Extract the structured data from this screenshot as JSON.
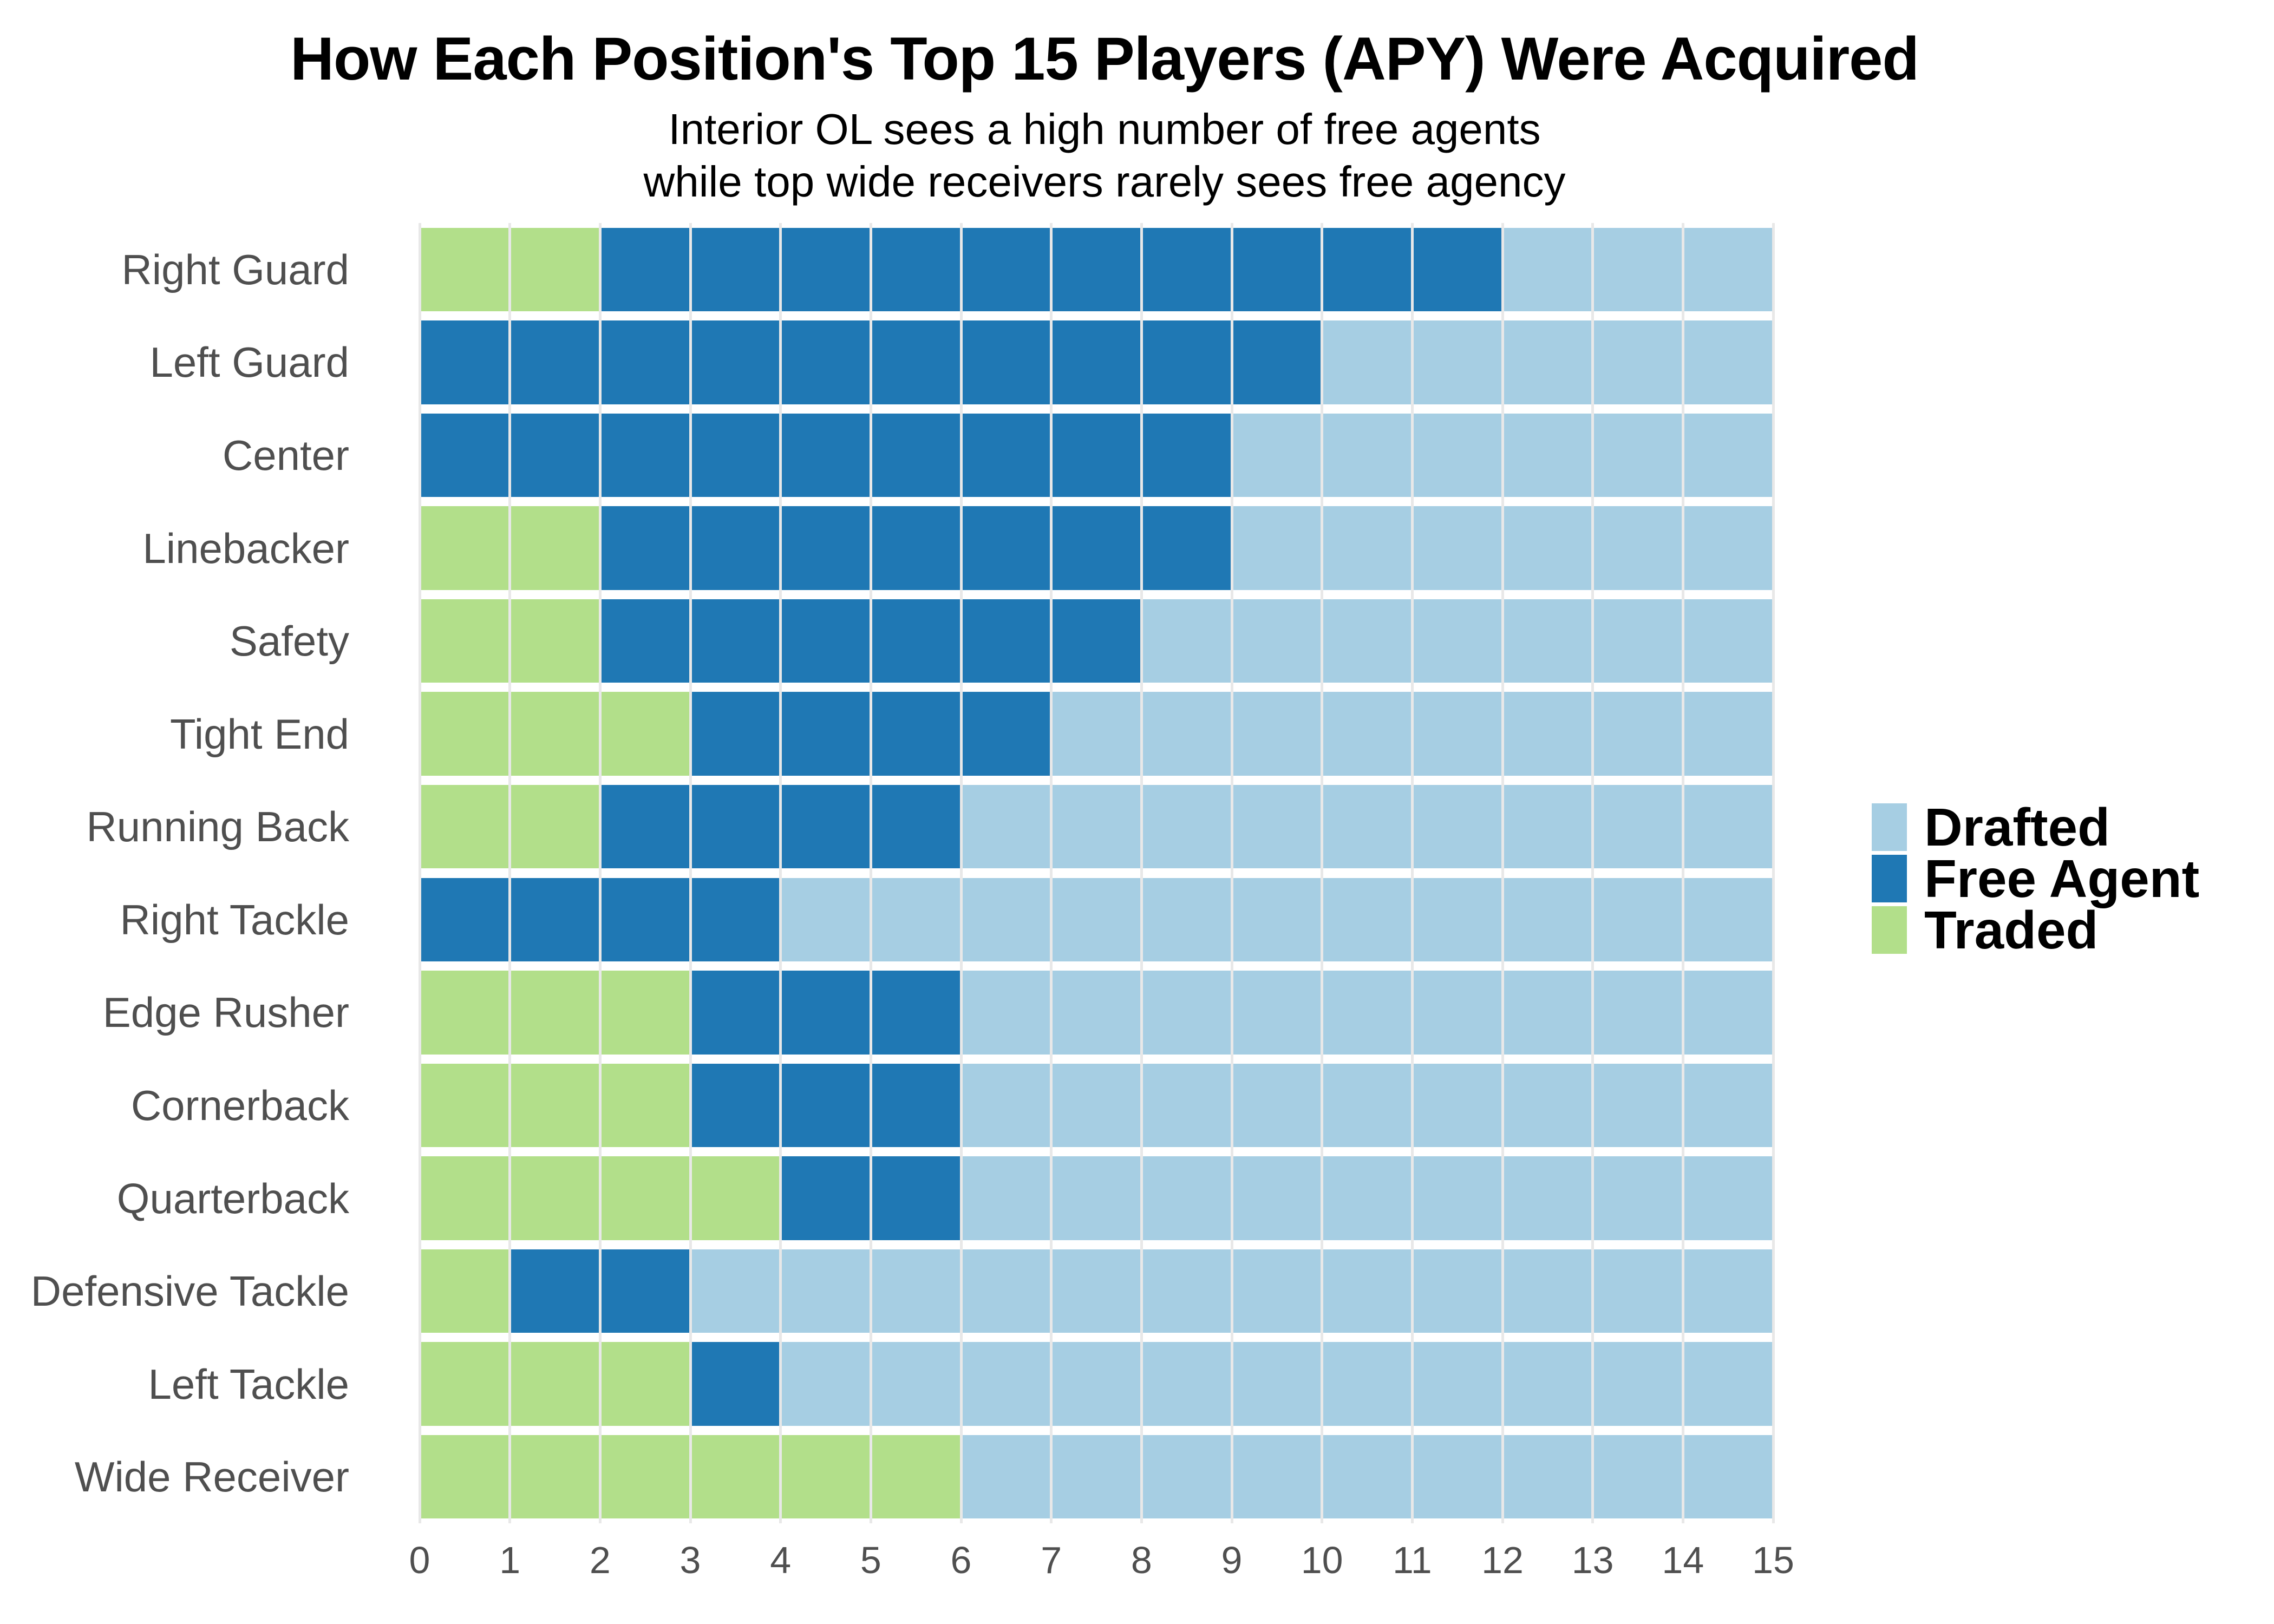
{
  "title": "How Each Position's Top 15 Players (APY) Were Acquired",
  "subtitle": {
    "line1": "Interior OL sees a high number of free agents",
    "line2": "while top wide receivers rarely sees free agency"
  },
  "legend": {
    "position": "right",
    "items": [
      {
        "label": "Drafted",
        "color": "#a6cee3"
      },
      {
        "label": "Free Agent",
        "color": "#1f78b4"
      },
      {
        "label": "Traded",
        "color": "#b2df8a"
      }
    ]
  },
  "x_axis": {
    "tick_labels": [
      "0",
      "1",
      "2",
      "3",
      "4",
      "5",
      "6",
      "7",
      "8",
      "9",
      "10",
      "11",
      "12",
      "13",
      "14",
      "15"
    ],
    "range": [
      0,
      15
    ],
    "grid": true
  },
  "colors": {
    "drafted": "#a6cee3",
    "free_agent": "#1f78b4",
    "traded": "#b2df8a",
    "grid": "#e8e8e8",
    "axis_text": "#4f4f4f",
    "title_text": "#000000",
    "background": "#ffffff"
  },
  "chart_data": {
    "type": "bar",
    "orientation": "horizontal",
    "stacked": true,
    "title": "How Each Position's Top 15 Players (APY) Were Acquired",
    "xlabel": "",
    "ylabel": "",
    "xlim": [
      0,
      15
    ],
    "bar_total": 15,
    "grid": true,
    "legend_position": "right",
    "categories": [
      "Right Guard",
      "Left Guard",
      "Center",
      "Linebacker",
      "Safety",
      "Tight End",
      "Running Back",
      "Right Tackle",
      "Edge Rusher",
      "Cornerback",
      "Quarterback",
      "Defensive Tackle",
      "Left Tackle",
      "Wide Receiver"
    ],
    "stack_order_left_to_right": [
      "Traded",
      "Free Agent",
      "Drafted"
    ],
    "series": [
      {
        "name": "Traded",
        "color": "#b2df8a",
        "values": [
          2,
          0,
          0,
          2,
          2,
          3,
          2,
          0,
          3,
          3,
          4,
          1,
          3,
          6
        ]
      },
      {
        "name": "Free Agent",
        "color": "#1f78b4",
        "values": [
          10,
          10,
          9,
          7,
          6,
          4,
          4,
          4,
          3,
          3,
          2,
          2,
          1,
          0
        ]
      },
      {
        "name": "Drafted",
        "color": "#a6cee3",
        "values": [
          3,
          5,
          6,
          6,
          7,
          8,
          9,
          11,
          9,
          9,
          9,
          12,
          11,
          9
        ]
      }
    ]
  }
}
